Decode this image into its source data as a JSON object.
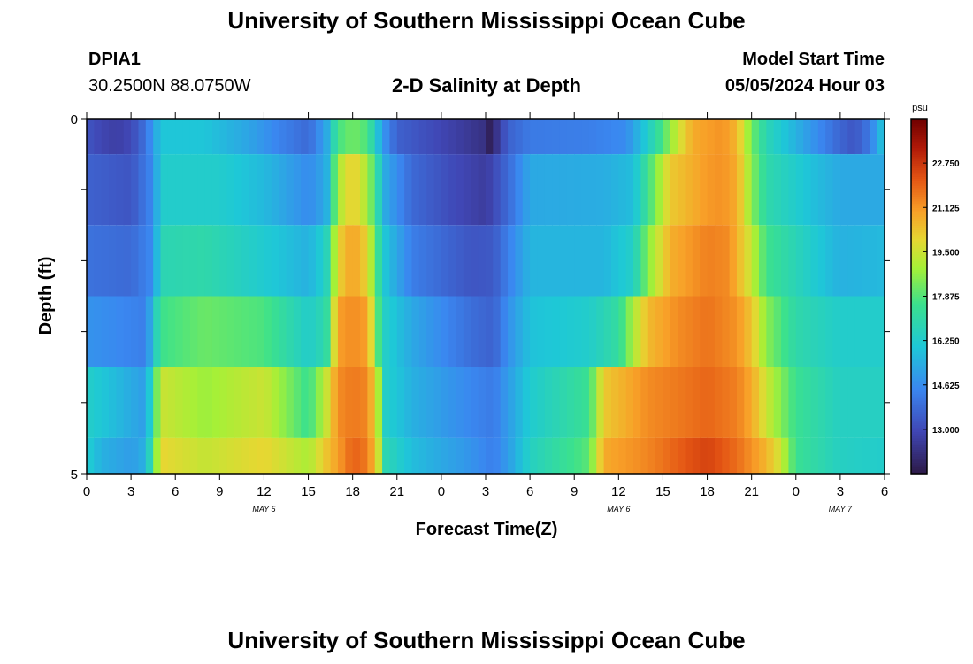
{
  "header": {
    "title": "University of Southern Mississippi Ocean Cube",
    "station_id": "DPIA1",
    "coords": "30.2500N  88.0750W",
    "subtitle": "2-D Salinity at Depth",
    "model_start_label": "Model Start Time",
    "model_start_value": "05/05/2024 Hour 03"
  },
  "footer": {
    "title": "University of Southern Mississippi Ocean Cube"
  },
  "chart_data": {
    "type": "heatmap",
    "xlabel": "Forecast Time(Z)",
    "ylabel": "Depth (ft)",
    "y_ticks": [
      "0",
      "5"
    ],
    "y_range": [
      0,
      5
    ],
    "x_range_hours": [
      0,
      54
    ],
    "x_ticks": [
      "0",
      "3",
      "6",
      "9",
      "12",
      "15",
      "18",
      "21",
      "0",
      "3",
      "6",
      "9",
      "12",
      "15",
      "18",
      "21",
      "0",
      "3",
      "6"
    ],
    "date_labels": [
      {
        "text": "MAY 5",
        "hour": 12
      },
      {
        "text": "MAY 6",
        "hour": 36
      },
      {
        "text": "MAY 7",
        "hour": 51
      }
    ],
    "colorbar": {
      "unit": "psu",
      "min": 11.375,
      "max": 24.375,
      "ticks": [
        "22.750",
        "21.125",
        "19.500",
        "17.875",
        "16.250",
        "14.625",
        "13.000"
      ],
      "tick_values": [
        22.75,
        21.125,
        19.5,
        17.875,
        16.25,
        14.625,
        13.0
      ]
    },
    "depth_layers": [
      {
        "depth_range": [
          0,
          0.5
        ],
        "keyframes": [
          [
            0,
            13.3
          ],
          [
            1,
            12.9
          ],
          [
            2,
            12.7
          ],
          [
            3,
            13.0
          ],
          [
            4,
            14.0
          ],
          [
            4.5,
            15.0
          ],
          [
            5,
            16.0
          ],
          [
            8,
            16.0
          ],
          [
            11,
            15.2
          ],
          [
            13,
            14.4
          ],
          [
            15,
            13.8
          ],
          [
            16.2,
            15.2
          ],
          [
            17,
            17.7
          ],
          [
            18,
            18.3
          ],
          [
            19,
            17.8
          ],
          [
            19.6,
            16.2
          ],
          [
            20,
            15.0
          ],
          [
            21,
            13.6
          ],
          [
            25,
            12.7
          ],
          [
            27,
            12.2
          ],
          [
            27.4,
            11.4
          ],
          [
            27.8,
            12.5
          ],
          [
            28.5,
            13.6
          ],
          [
            30,
            14.2
          ],
          [
            34,
            14.3
          ],
          [
            36.5,
            14.6
          ],
          [
            38,
            16.3
          ],
          [
            39,
            17.8
          ],
          [
            40,
            19.5
          ],
          [
            41,
            20.8
          ],
          [
            43,
            21.2
          ],
          [
            44,
            20.6
          ],
          [
            45,
            18.3
          ],
          [
            46,
            16.8
          ],
          [
            48,
            15.5
          ],
          [
            51,
            13.7
          ],
          [
            52,
            13.3
          ],
          [
            53,
            14.2
          ],
          [
            54,
            16.2
          ]
        ]
      },
      {
        "depth_range": [
          0.5,
          1.5
        ],
        "keyframes": [
          [
            0,
            13.6
          ],
          [
            3,
            13.3
          ],
          [
            4.5,
            14.6
          ],
          [
            5,
            16.3
          ],
          [
            9,
            16.3
          ],
          [
            12,
            15.7
          ],
          [
            15,
            14.6
          ],
          [
            16.2,
            15.3
          ],
          [
            17,
            19.0
          ],
          [
            18,
            20.2
          ],
          [
            19,
            19.0
          ],
          [
            19.7,
            17.0
          ],
          [
            20,
            15.5
          ],
          [
            22,
            13.8
          ],
          [
            25,
            13.0
          ],
          [
            27,
            12.6
          ],
          [
            28.5,
            13.8
          ],
          [
            30,
            15.3
          ],
          [
            35,
            15.4
          ],
          [
            37,
            15.8
          ],
          [
            38,
            17.5
          ],
          [
            39.5,
            20.2
          ],
          [
            42,
            21.1
          ],
          [
            43,
            21.2
          ],
          [
            44,
            20.8
          ],
          [
            45,
            18.6
          ],
          [
            46,
            17.0
          ],
          [
            49,
            15.9
          ],
          [
            51,
            15.3
          ],
          [
            54,
            15.3
          ]
        ]
      },
      {
        "depth_range": [
          1.5,
          2.5
        ],
        "keyframes": [
          [
            0,
            14.0
          ],
          [
            3,
            13.8
          ],
          [
            4.5,
            14.6
          ],
          [
            5,
            16.8
          ],
          [
            8,
            17.0
          ],
          [
            12,
            16.2
          ],
          [
            15,
            15.5
          ],
          [
            16.2,
            16.5
          ],
          [
            17,
            20.0
          ],
          [
            18,
            21.0
          ],
          [
            19,
            20.0
          ],
          [
            19.7,
            17.5
          ],
          [
            20,
            16.2
          ],
          [
            22,
            14.3
          ],
          [
            26,
            13.3
          ],
          [
            27.5,
            13.4
          ],
          [
            28.5,
            14.3
          ],
          [
            30,
            15.6
          ],
          [
            35,
            15.6
          ],
          [
            37,
            16.4
          ],
          [
            38,
            18.5
          ],
          [
            39.5,
            20.7
          ],
          [
            42,
            21.5
          ],
          [
            43.5,
            21.3
          ],
          [
            45,
            19.4
          ],
          [
            46,
            17.6
          ],
          [
            49,
            16.3
          ],
          [
            51,
            15.5
          ],
          [
            54,
            15.7
          ]
        ]
      },
      {
        "depth_range": [
          2.5,
          3.5
        ],
        "keyframes": [
          [
            0,
            14.8
          ],
          [
            4,
            14.3
          ],
          [
            5,
            17.6
          ],
          [
            8,
            18.2
          ],
          [
            12,
            17.8
          ],
          [
            15,
            16.3
          ],
          [
            16.2,
            17.0
          ],
          [
            17,
            21.0
          ],
          [
            18,
            21.3
          ],
          [
            19,
            21.0
          ],
          [
            19.7,
            18.0
          ],
          [
            20,
            16.5
          ],
          [
            22,
            15.3
          ],
          [
            26,
            13.9
          ],
          [
            27.5,
            13.6
          ],
          [
            28.5,
            14.7
          ],
          [
            30,
            15.9
          ],
          [
            34,
            16.3
          ],
          [
            36,
            17.2
          ],
          [
            37,
            19.0
          ],
          [
            38,
            20.5
          ],
          [
            40,
            21.3
          ],
          [
            42,
            21.7
          ],
          [
            44,
            21.2
          ],
          [
            45,
            20.3
          ],
          [
            46,
            18.6
          ],
          [
            48,
            17.0
          ],
          [
            51,
            16.3
          ],
          [
            54,
            16.3
          ]
        ]
      },
      {
        "depth_range": [
          3.5,
          4.5
        ],
        "keyframes": [
          [
            0,
            16.4
          ],
          [
            4,
            15.0
          ],
          [
            5,
            19.5
          ],
          [
            8,
            18.8
          ],
          [
            12,
            19.5
          ],
          [
            15,
            17.5
          ],
          [
            16.2,
            19.4
          ],
          [
            17,
            21.3
          ],
          [
            18,
            21.6
          ],
          [
            19,
            21.4
          ],
          [
            19.7,
            19.5
          ],
          [
            20,
            16.5
          ],
          [
            22,
            15.5
          ],
          [
            26,
            14.5
          ],
          [
            27.5,
            14.2
          ],
          [
            28.5,
            15.0
          ],
          [
            30,
            16.2
          ],
          [
            34,
            17.5
          ],
          [
            35,
            20.2
          ],
          [
            38,
            21.3
          ],
          [
            40,
            21.6
          ],
          [
            42,
            21.9
          ],
          [
            44,
            21.5
          ],
          [
            45,
            20.8
          ],
          [
            46,
            19.5
          ],
          [
            48,
            17.5
          ],
          [
            51,
            16.5
          ],
          [
            54,
            16.5
          ]
        ]
      },
      {
        "depth_range": [
          4.5,
          5
        ],
        "keyframes": [
          [
            0,
            16.3
          ],
          [
            1,
            15.5
          ],
          [
            3,
            15.0
          ],
          [
            4,
            15.5
          ],
          [
            5,
            20.0
          ],
          [
            8,
            19.4
          ],
          [
            12,
            20.0
          ],
          [
            15,
            19.0
          ],
          [
            16.2,
            20.3
          ],
          [
            17,
            21.0
          ],
          [
            18,
            22.0
          ],
          [
            19,
            21.6
          ],
          [
            19.7,
            20.0
          ],
          [
            20,
            17.0
          ],
          [
            22,
            15.8
          ],
          [
            26,
            14.8
          ],
          [
            27.5,
            14.3
          ],
          [
            28.5,
            15.0
          ],
          [
            30,
            16.5
          ],
          [
            34,
            18.0
          ],
          [
            35,
            20.8
          ],
          [
            38,
            21.4
          ],
          [
            41,
            22.3
          ],
          [
            42,
            22.5
          ],
          [
            44,
            21.8
          ],
          [
            46,
            20.6
          ],
          [
            47,
            19.5
          ],
          [
            48,
            17.5
          ],
          [
            51,
            16.5
          ],
          [
            54,
            16.3
          ]
        ]
      }
    ]
  }
}
